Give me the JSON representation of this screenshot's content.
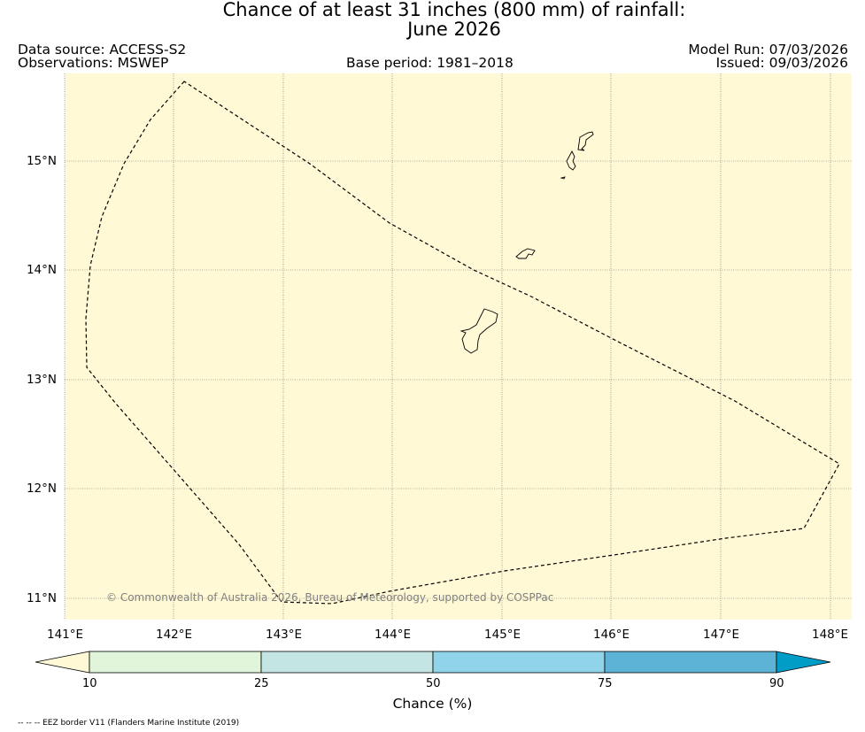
{
  "title_line1": "Chance of at least 31 inches (800  mm) of rainfall:",
  "title_line2": "June 2026",
  "data_source": "Data source: ACCESS-S2",
  "observations": "Observations: MSWEP",
  "base_period": "Base period: 1981–2018",
  "model_run": "Model Run: 07/03/2026",
  "issued": "Issued: 09/03/2026",
  "copyright": "© Commonwealth of Australia 2026, Bureau of Meteorology, supported by COSPPac",
  "map": {
    "background_color": "#fff9d6",
    "lon_labels": [
      "141°E",
      "142°E",
      "143°E",
      "144°E",
      "145°E",
      "146°E",
      "147°E",
      "148°E"
    ],
    "lat_labels": [
      "15°N",
      "14°N",
      "13°N",
      "12°N",
      "11°N"
    ]
  },
  "colorbar": {
    "colors": [
      "#fff9d6",
      "#e0f5da",
      "#c3e6e4",
      "#91d4ea",
      "#5db3d6",
      "#019dc7"
    ],
    "tick_labels": [
      "10",
      "25",
      "50",
      "75",
      "90"
    ],
    "label": "Chance (%)"
  },
  "footnote": "-- -- -- EEZ border V11 (Flanders Marine Institute (2019)"
}
